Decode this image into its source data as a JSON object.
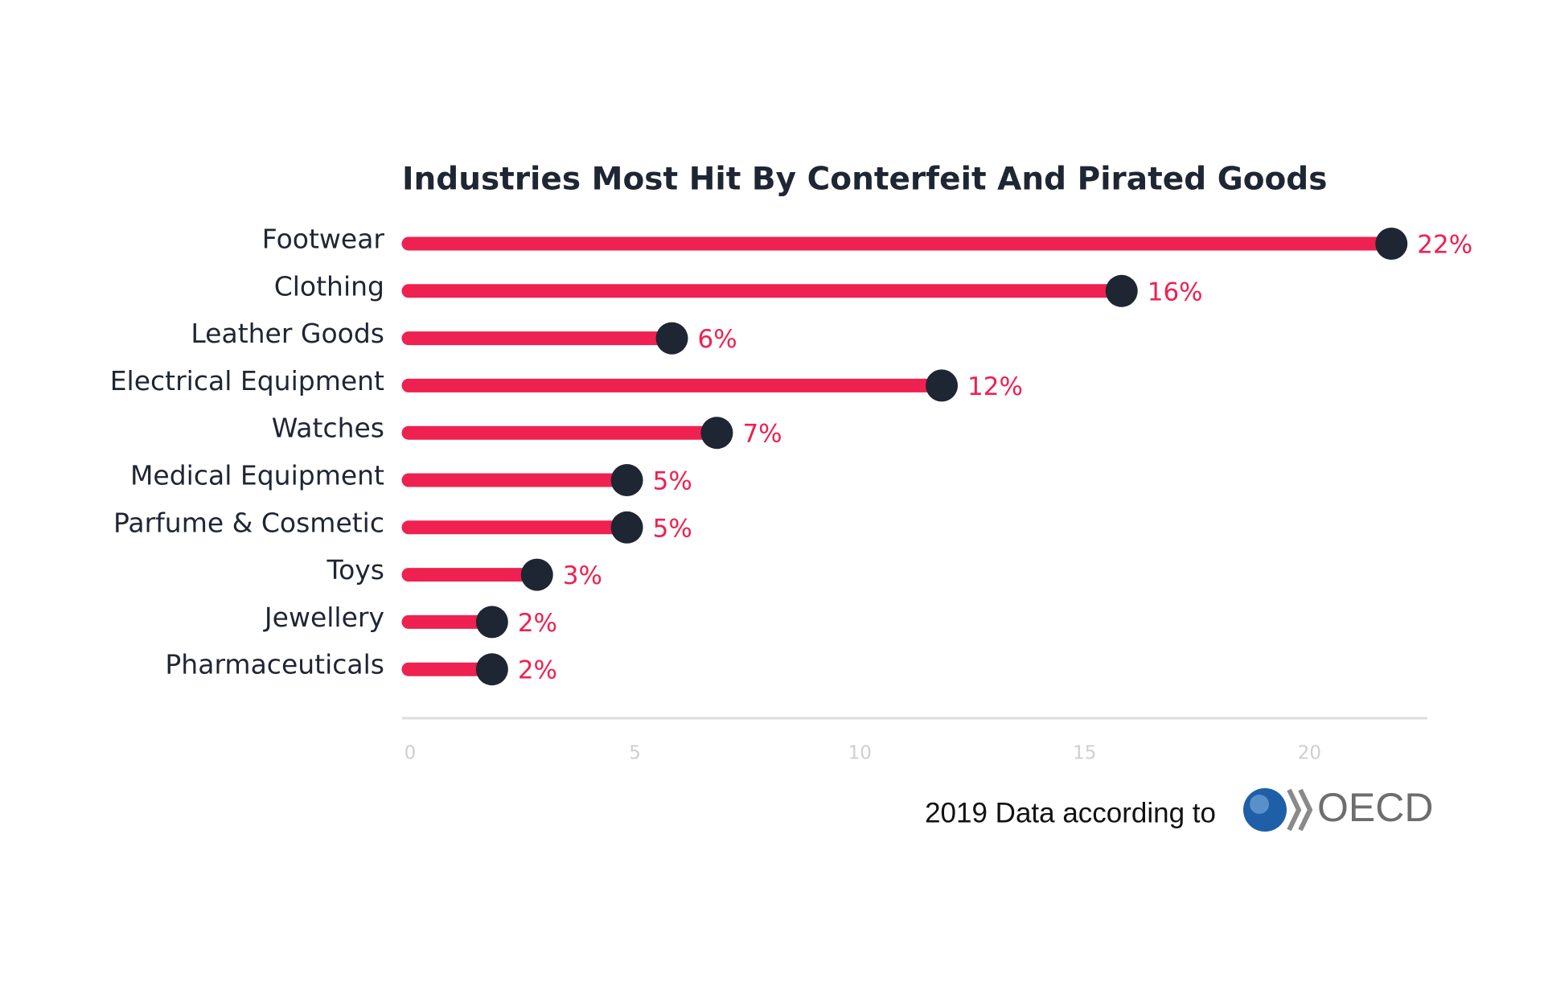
{
  "chart_data": {
    "type": "lollipop",
    "title": "Industries Most Hit By Conterfeit And Pirated Goods",
    "categories": [
      "Footwear",
      "Clothing",
      "Leather Goods",
      "Electrical Equipment",
      "Watches",
      "Medical Equipment",
      "Parfume & Cosmetic",
      "Toys",
      "Jewellery",
      "Pharmaceuticals"
    ],
    "values": [
      22,
      16,
      6,
      12,
      7,
      5,
      5,
      3,
      2,
      2
    ],
    "value_labels": [
      "22%",
      "16%",
      "6%",
      "12%",
      "7%",
      "5%",
      "5%",
      "3%",
      "2%",
      "2%"
    ],
    "color": "#ee2150",
    "dot_color": "#1f2633",
    "xlim": [
      0,
      22.8
    ],
    "xticks": [
      0,
      5,
      10,
      15,
      20
    ],
    "grid": false
  },
  "footer": {
    "text": "2019 Data according to",
    "logo": "OECD"
  }
}
